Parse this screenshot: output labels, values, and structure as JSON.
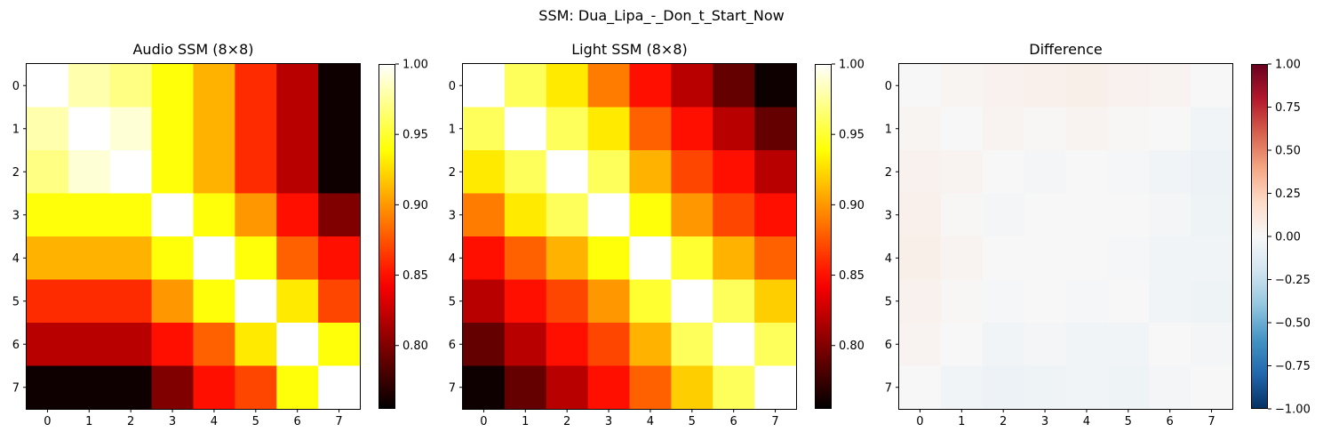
{
  "figure_title": "SSM: Dua_Lipa_-_Don_t_Start_Now",
  "chart_data": [
    {
      "type": "heatmap",
      "title": "Audio SSM (8×8)",
      "colormap": "hot",
      "vmin": 0.755,
      "vmax": 1.0,
      "x_ticks": [
        "0",
        "1",
        "2",
        "3",
        "4",
        "5",
        "6",
        "7"
      ],
      "y_ticks": [
        "0",
        "1",
        "2",
        "3",
        "4",
        "5",
        "6",
        "7"
      ],
      "colorbar_ticks": [
        "0.80",
        "0.85",
        "0.90",
        "0.95",
        "1.00"
      ],
      "colorbar_tick_values": [
        0.8,
        0.85,
        0.9,
        0.95,
        1.0
      ],
      "values": [
        [
          1.0,
          0.98,
          0.97,
          0.94,
          0.91,
          0.86,
          0.82,
          0.76
        ],
        [
          0.98,
          1.0,
          0.99,
          0.94,
          0.91,
          0.86,
          0.82,
          0.76
        ],
        [
          0.97,
          0.99,
          1.0,
          0.94,
          0.91,
          0.86,
          0.82,
          0.76
        ],
        [
          0.94,
          0.94,
          0.94,
          1.0,
          0.94,
          0.9,
          0.85,
          0.8
        ],
        [
          0.91,
          0.91,
          0.91,
          0.94,
          1.0,
          0.94,
          0.88,
          0.85
        ],
        [
          0.86,
          0.86,
          0.86,
          0.9,
          0.94,
          1.0,
          0.93,
          0.87
        ],
        [
          0.82,
          0.82,
          0.82,
          0.85,
          0.88,
          0.93,
          1.0,
          0.94
        ],
        [
          0.76,
          0.76,
          0.76,
          0.8,
          0.85,
          0.87,
          0.94,
          1.0
        ]
      ]
    },
    {
      "type": "heatmap",
      "title": "Light SSM (8×8)",
      "colormap": "hot",
      "vmin": 0.755,
      "vmax": 1.0,
      "x_ticks": [
        "0",
        "1",
        "2",
        "3",
        "4",
        "5",
        "6",
        "7"
      ],
      "y_ticks": [
        "0",
        "1",
        "2",
        "3",
        "4",
        "5",
        "6",
        "7"
      ],
      "colorbar_ticks": [
        "0.80",
        "0.85",
        "0.90",
        "0.95",
        "1.00"
      ],
      "colorbar_tick_values": [
        0.8,
        0.85,
        0.9,
        0.95,
        1.0
      ],
      "values": [
        [
          1.0,
          0.96,
          0.93,
          0.89,
          0.85,
          0.82,
          0.79,
          0.76
        ],
        [
          0.96,
          1.0,
          0.96,
          0.93,
          0.88,
          0.85,
          0.82,
          0.79
        ],
        [
          0.93,
          0.96,
          1.0,
          0.96,
          0.91,
          0.87,
          0.85,
          0.82
        ],
        [
          0.89,
          0.93,
          0.96,
          1.0,
          0.94,
          0.9,
          0.87,
          0.85
        ],
        [
          0.85,
          0.88,
          0.91,
          0.94,
          1.0,
          0.95,
          0.91,
          0.88
        ],
        [
          0.82,
          0.85,
          0.87,
          0.9,
          0.95,
          1.0,
          0.96,
          0.92
        ],
        [
          0.79,
          0.82,
          0.85,
          0.87,
          0.91,
          0.96,
          1.0,
          0.96
        ],
        [
          0.76,
          0.79,
          0.82,
          0.85,
          0.88,
          0.92,
          0.96,
          1.0
        ]
      ]
    },
    {
      "type": "heatmap",
      "title": "Difference",
      "colormap": "RdBu_r",
      "vmin": -1.0,
      "vmax": 1.0,
      "x_ticks": [
        "0",
        "1",
        "2",
        "3",
        "4",
        "5",
        "6",
        "7"
      ],
      "y_ticks": [
        "0",
        "1",
        "2",
        "3",
        "4",
        "5",
        "6",
        "7"
      ],
      "colorbar_ticks": [
        "1.00",
        "0.75",
        "0.50",
        "0.25",
        "0.00",
        "−0.25",
        "−0.50",
        "−0.75",
        "−1.00"
      ],
      "colorbar_tick_values": [
        1.0,
        0.75,
        0.5,
        0.25,
        0.0,
        -0.25,
        -0.5,
        -0.75,
        -1.0
      ],
      "values": [
        [
          0.0,
          0.02,
          0.04,
          0.05,
          0.06,
          0.04,
          0.03,
          0.0
        ],
        [
          0.02,
          0.0,
          0.03,
          0.01,
          0.03,
          0.01,
          0.0,
          -0.03
        ],
        [
          0.04,
          0.03,
          0.0,
          -0.02,
          0.0,
          -0.01,
          -0.03,
          -0.06
        ],
        [
          0.05,
          0.01,
          -0.02,
          0.0,
          0.0,
          0.0,
          -0.02,
          -0.05
        ],
        [
          0.06,
          0.03,
          0.0,
          0.0,
          0.0,
          -0.01,
          -0.03,
          -0.03
        ],
        [
          0.04,
          0.01,
          -0.01,
          0.0,
          -0.01,
          0.0,
          -0.03,
          -0.05
        ],
        [
          0.03,
          0.0,
          -0.03,
          -0.02,
          -0.03,
          -0.03,
          0.0,
          -0.02
        ],
        [
          0.0,
          -0.03,
          -0.06,
          -0.05,
          -0.03,
          -0.05,
          -0.02,
          0.0
        ]
      ]
    }
  ]
}
